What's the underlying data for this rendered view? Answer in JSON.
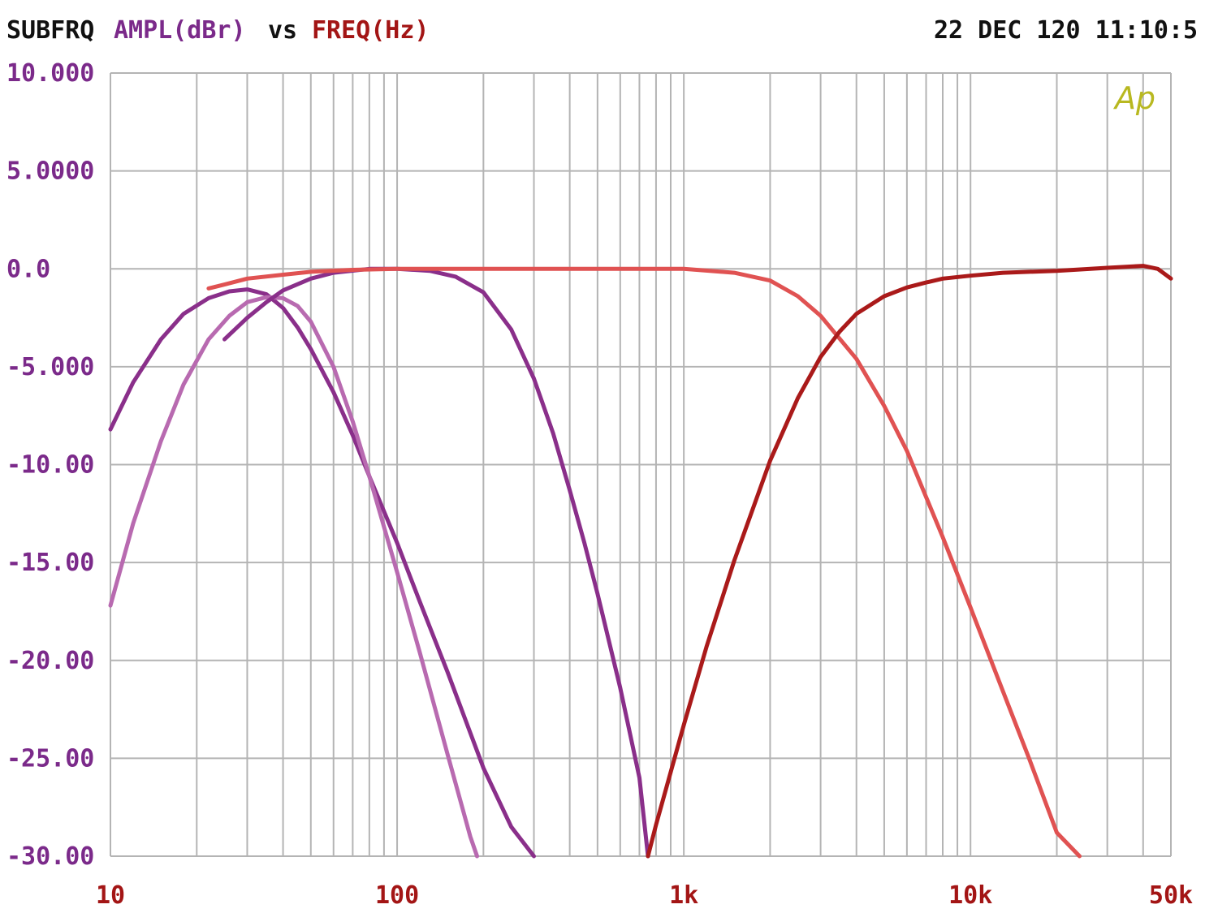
{
  "header": {
    "label_left": "SUBFRQ",
    "y_label": "AMPL(dBr)",
    "vs": "vs",
    "x_label": "FREQ(Hz)",
    "timestamp": "22 DEC 120 11:10:5"
  },
  "colors": {
    "text_black": "#111111",
    "y_axis_text": "#7b2a8a",
    "x_axis_text": "#a31515",
    "grid": "#b4b4b4",
    "logo": "#b8b820"
  },
  "chart_data": {
    "type": "line",
    "x_scale": "log",
    "xlim": [
      10,
      50000
    ],
    "ylim": [
      -30,
      10
    ],
    "grid": true,
    "logo": "Ap",
    "y_ticks": [
      10,
      5,
      0,
      -5,
      -10,
      -15,
      -20,
      -25,
      -30
    ],
    "y_tick_labels": [
      "10.000",
      "5.0000",
      "0.0",
      "-5.000",
      "-10.00",
      "-15.00",
      "-20.00",
      "-25.00",
      "-30.00"
    ],
    "x_ticks": [
      10,
      100,
      1000,
      10000,
      50000
    ],
    "x_tick_labels": [
      "10",
      "100",
      "1k",
      "10k",
      "50k"
    ],
    "series": [
      {
        "color": "#8a2f8a",
        "x": [
          10,
          12,
          15,
          18,
          22,
          26,
          30,
          35,
          40,
          45,
          50,
          60,
          70,
          80,
          100,
          120,
          150,
          200,
          250,
          300
        ],
        "y": [
          -8.2,
          -5.8,
          -3.6,
          -2.3,
          -1.5,
          -1.15,
          -1.05,
          -1.3,
          -2.0,
          -3.0,
          -4.1,
          -6.3,
          -8.5,
          -10.6,
          -14.0,
          -17.0,
          -20.6,
          -25.5,
          -28.5,
          -30
        ]
      },
      {
        "color": "#b86ab0",
        "x": [
          10,
          12,
          15,
          18,
          22,
          26,
          30,
          35,
          40,
          45,
          50,
          60,
          70,
          80,
          100,
          120,
          150,
          180,
          190
        ],
        "y": [
          -17.2,
          -13.0,
          -8.8,
          -5.9,
          -3.6,
          -2.4,
          -1.7,
          -1.45,
          -1.5,
          -1.9,
          -2.7,
          -5.0,
          -7.8,
          -10.6,
          -15.5,
          -19.6,
          -24.8,
          -29.0,
          -30
        ]
      },
      {
        "color": "#8a2f8a",
        "x": [
          25,
          30,
          35,
          40,
          50,
          60,
          80,
          100,
          130,
          160,
          200,
          250,
          300,
          350,
          400,
          450,
          500,
          600,
          700,
          750
        ],
        "y": [
          -3.6,
          -2.5,
          -1.7,
          -1.1,
          -0.5,
          -0.2,
          0.0,
          0.0,
          -0.1,
          -0.4,
          -1.2,
          -3.1,
          -5.6,
          -8.4,
          -11.3,
          -14.0,
          -16.6,
          -21.4,
          -26.0,
          -30
        ]
      },
      {
        "color": "#e05252",
        "x": [
          22,
          25,
          30,
          40,
          50,
          70,
          100,
          200,
          500,
          1000,
          1500,
          2000,
          2500,
          3000,
          4000,
          5000,
          6000,
          8000,
          10000,
          13000,
          16000,
          20000,
          24000
        ],
        "y": [
          -1.0,
          -0.8,
          -0.5,
          -0.3,
          -0.15,
          -0.05,
          0.0,
          0.0,
          0.0,
          0.0,
          -0.2,
          -0.6,
          -1.4,
          -2.4,
          -4.6,
          -7.0,
          -9.3,
          -13.7,
          -17.3,
          -21.6,
          -25.0,
          -28.8,
          -30
        ]
      },
      {
        "color": "#aa1a1a",
        "x": [
          750,
          800,
          900,
          1000,
          1200,
          1500,
          2000,
          2500,
          3000,
          3500,
          4000,
          5000,
          6000,
          7000,
          8000,
          10000,
          13000,
          20000,
          30000,
          40000,
          45000,
          50000
        ],
        "y": [
          -30,
          -28.4,
          -25.7,
          -23.3,
          -19.3,
          -14.9,
          -9.8,
          -6.6,
          -4.5,
          -3.2,
          -2.3,
          -1.4,
          -0.95,
          -0.7,
          -0.5,
          -0.35,
          -0.2,
          -0.1,
          0.05,
          0.15,
          0.0,
          -0.5
        ]
      }
    ]
  }
}
